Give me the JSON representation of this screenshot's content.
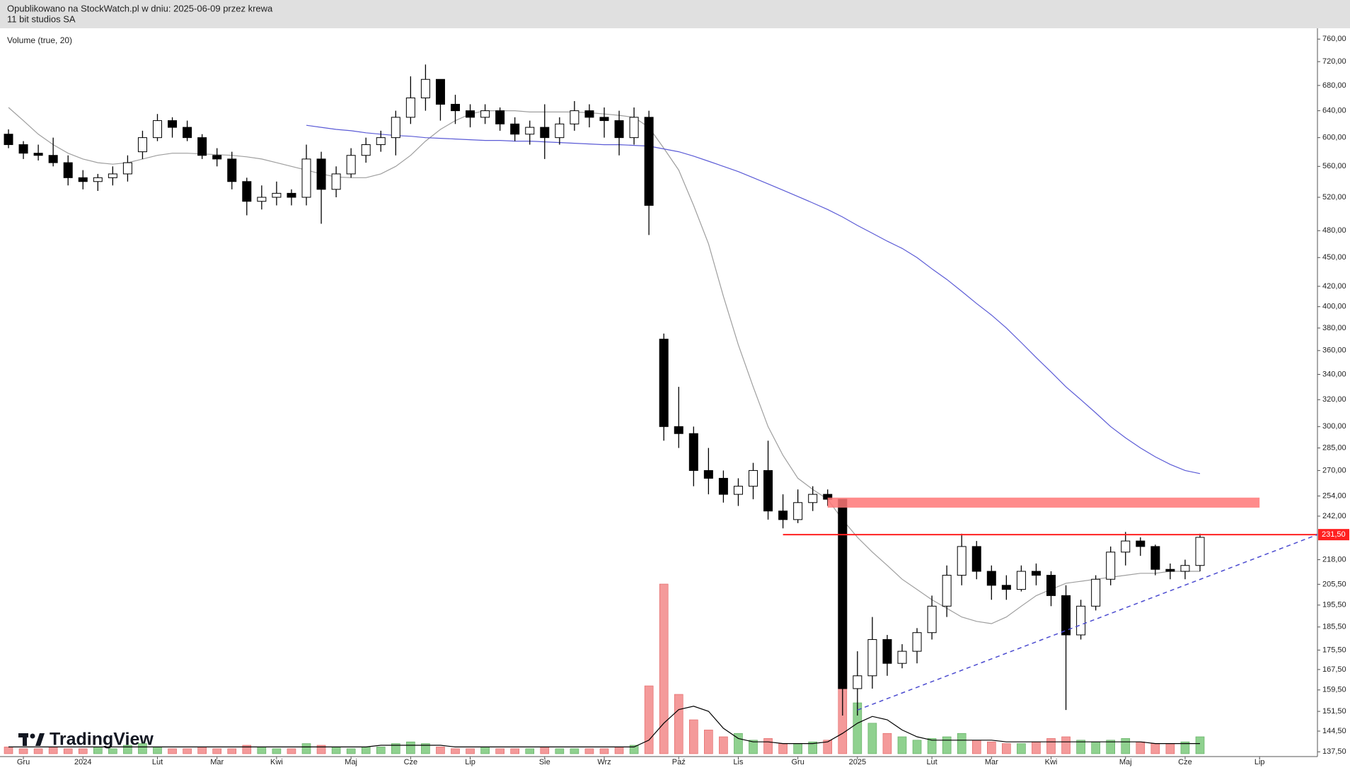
{
  "header": {
    "published": "Opublikowano na StockWatch.pl w dniu: 2025-06-09 przez krewa",
    "symbol": "11 bit studios SA"
  },
  "chart_data": {
    "type": "candlestick",
    "indicator_label": "Volume (true, 20)",
    "brand": "TradingView",
    "log_scale": true,
    "up_color": "#ffffff",
    "down_color": "#000000",
    "volume_up_color": "#8fd18f",
    "volume_down_color": "#f49a9a",
    "categories": [
      null,
      "Gru",
      null,
      null,
      null,
      "2024",
      null,
      null,
      null,
      null,
      "Lut",
      null,
      null,
      null,
      "Mar",
      null,
      null,
      null,
      "Kwi",
      null,
      null,
      null,
      null,
      "Maj",
      null,
      null,
      null,
      "Cze",
      null,
      null,
      null,
      "Lip",
      null,
      null,
      null,
      null,
      "Sie",
      null,
      null,
      null,
      "Wrz",
      null,
      null,
      null,
      null,
      "Paź",
      null,
      null,
      null,
      "Lis",
      null,
      null,
      null,
      "Gru",
      null,
      null,
      null,
      "2025",
      null,
      null,
      null,
      null,
      "Lut",
      null,
      null,
      null,
      "Mar",
      null,
      null,
      null,
      "Kwi",
      null,
      null,
      null,
      null,
      "Maj",
      null,
      null,
      null,
      "Cze",
      null,
      null,
      null,
      null,
      "Lip",
      null,
      null,
      null
    ],
    "open": [
      605,
      590,
      578,
      575,
      565,
      545,
      540,
      545,
      550,
      580,
      600,
      625,
      615,
      600,
      575,
      570,
      540,
      515,
      520,
      525,
      520,
      570,
      530,
      550,
      575,
      590,
      600,
      630,
      660,
      690,
      650,
      640,
      630,
      640,
      620,
      605,
      615,
      600,
      620,
      640,
      630,
      625,
      600,
      630,
      370,
      300,
      295,
      270,
      265,
      255,
      260,
      270,
      245,
      240,
      250,
      255,
      252,
      160,
      165,
      180,
      170,
      175,
      183,
      195,
      210,
      225,
      212,
      205,
      203,
      212,
      210,
      200,
      182,
      195,
      208,
      222,
      228,
      225,
      213,
      212,
      215,
      null,
      null,
      null,
      null,
      null,
      null,
      null
    ],
    "high": [
      612,
      595,
      590,
      600,
      575,
      555,
      550,
      560,
      575,
      610,
      635,
      630,
      625,
      605,
      585,
      580,
      545,
      535,
      540,
      530,
      590,
      580,
      560,
      585,
      600,
      610,
      640,
      695,
      715,
      690,
      665,
      650,
      650,
      645,
      630,
      625,
      650,
      630,
      655,
      650,
      645,
      640,
      645,
      640,
      375,
      330,
      300,
      285,
      270,
      265,
      275,
      290,
      255,
      258,
      260,
      258,
      252,
      175,
      190,
      182,
      178,
      185,
      200,
      215,
      232,
      228,
      215,
      210,
      215,
      216,
      212,
      205,
      198,
      210,
      225,
      233,
      230,
      226,
      216,
      218,
      232,
      null,
      null,
      null,
      null,
      null,
      null,
      null
    ],
    "low": [
      585,
      570,
      568,
      560,
      535,
      530,
      528,
      535,
      540,
      570,
      595,
      600,
      595,
      570,
      560,
      530,
      498,
      505,
      510,
      510,
      510,
      488,
      520,
      545,
      565,
      580,
      575,
      620,
      640,
      625,
      620,
      615,
      620,
      610,
      595,
      590,
      570,
      590,
      610,
      615,
      600,
      575,
      590,
      475,
      290,
      285,
      260,
      255,
      250,
      248,
      252,
      240,
      235,
      238,
      245,
      248,
      150,
      150,
      160,
      165,
      168,
      170,
      180,
      190,
      205,
      208,
      198,
      198,
      202,
      205,
      195,
      152,
      180,
      193,
      205,
      215,
      220,
      210,
      208,
      208,
      212,
      null,
      null,
      null,
      null,
      null,
      null,
      null
    ],
    "close": [
      590,
      578,
      575,
      565,
      545,
      540,
      545,
      550,
      565,
      600,
      625,
      615,
      600,
      575,
      570,
      540,
      515,
      520,
      525,
      520,
      570,
      530,
      550,
      575,
      590,
      600,
      630,
      660,
      690,
      650,
      640,
      630,
      640,
      620,
      605,
      615,
      600,
      620,
      640,
      630,
      625,
      600,
      630,
      510,
      300,
      295,
      270,
      265,
      255,
      260,
      270,
      245,
      240,
      250,
      255,
      252,
      160,
      165,
      180,
      170,
      175,
      183,
      195,
      210,
      225,
      212,
      205,
      203,
      212,
      210,
      200,
      182,
      195,
      208,
      222,
      228,
      225,
      213,
      212,
      215,
      230,
      null,
      null,
      null,
      null,
      null,
      null,
      null
    ],
    "volume": [
      4,
      3,
      3,
      4,
      3,
      3,
      4,
      3,
      5,
      6,
      4,
      3,
      3,
      4,
      3,
      3,
      5,
      4,
      3,
      3,
      6,
      5,
      4,
      3,
      4,
      4,
      6,
      7,
      6,
      4,
      3,
      3,
      4,
      3,
      3,
      3,
      4,
      3,
      3,
      3,
      3,
      4,
      5,
      40,
      100,
      35,
      20,
      14,
      10,
      12,
      8,
      9,
      6,
      6,
      7,
      8,
      55,
      30,
      18,
      12,
      10,
      8,
      9,
      10,
      12,
      8,
      7,
      6,
      6,
      7,
      9,
      10,
      8,
      7,
      8,
      9,
      7,
      6,
      6,
      7,
      10,
      null,
      null,
      null,
      null,
      null,
      null,
      null
    ],
    "lines": [
      {
        "color": "#000000",
        "pane": "volume",
        "values": [
          4,
          4,
          4,
          4,
          4,
          4,
          4,
          4,
          4,
          4,
          4,
          4,
          4,
          4,
          4,
          4,
          4,
          4,
          4,
          4,
          4,
          4,
          4,
          4,
          4,
          5,
          5,
          5,
          5,
          5,
          4,
          4,
          4,
          4,
          4,
          4,
          4,
          4,
          4,
          4,
          4,
          4,
          4,
          8,
          18,
          26,
          28,
          25,
          15,
          9,
          7,
          7,
          6,
          6,
          6,
          7,
          12,
          18,
          22,
          20,
          14,
          10,
          8,
          8,
          8,
          8,
          8,
          7,
          7,
          7,
          7,
          7,
          7,
          7,
          7,
          7,
          7,
          6,
          6,
          6,
          6,
          null,
          null,
          null,
          null,
          null,
          null,
          null
        ]
      },
      {
        "color": "#9e9e9e",
        "pane": "price",
        "values": [
          645,
          625,
          605,
          590,
          578,
          570,
          565,
          563,
          565,
          570,
          575,
          578,
          578,
          577,
          576,
          575,
          573,
          570,
          565,
          560,
          555,
          550,
          546,
          545,
          545,
          550,
          560,
          575,
          595,
          612,
          625,
          635,
          640,
          640,
          640,
          638,
          638,
          638,
          638,
          637,
          635,
          633,
          630,
          615,
          585,
          555,
          510,
          465,
          410,
          365,
          330,
          300,
          280,
          265,
          258,
          252,
          240,
          230,
          222,
          215,
          208,
          203,
          198,
          194,
          190,
          188,
          187,
          190,
          195,
          200,
          203,
          206,
          207,
          208,
          209,
          210,
          211,
          211,
          212,
          212,
          212,
          null,
          null,
          null,
          null,
          null,
          null,
          null
        ]
      },
      {
        "color": "#5b5bd6",
        "pane": "price",
        "values": [
          null,
          null,
          null,
          null,
          null,
          null,
          null,
          null,
          null,
          null,
          null,
          null,
          null,
          null,
          null,
          null,
          null,
          null,
          null,
          null,
          618,
          615,
          612,
          610,
          607,
          605,
          603,
          602,
          600,
          599,
          598,
          597,
          596,
          596,
          595,
          595,
          594,
          593,
          592,
          591,
          590,
          590,
          589,
          588,
          584,
          580,
          574,
          567,
          560,
          553,
          545,
          537,
          529,
          521,
          513,
          505,
          496,
          486,
          477,
          468,
          460,
          450,
          438,
          427,
          415,
          403,
          392,
          380,
          367,
          354,
          342,
          330,
          320,
          310,
          300,
          292,
          285,
          279,
          274,
          270,
          268,
          null,
          null,
          null,
          null,
          null,
          null,
          null
        ]
      }
    ],
    "ylim": [
      136.4,
      776
    ],
    "yticks": [
      {
        "value": 760,
        "label": "760,00"
      },
      {
        "value": 720,
        "label": "720,00"
      },
      {
        "value": 680,
        "label": "680,00"
      },
      {
        "value": 640,
        "label": "640,00"
      },
      {
        "value": 600,
        "label": "600,00"
      },
      {
        "value": 560,
        "label": "560,00"
      },
      {
        "value": 520,
        "label": "520,00"
      },
      {
        "value": 480,
        "label": "480,00"
      },
      {
        "value": 450,
        "label": "450,00"
      },
      {
        "value": 420,
        "label": "420,00"
      },
      {
        "value": 400,
        "label": "400,00"
      },
      {
        "value": 380,
        "label": "380,00"
      },
      {
        "value": 360,
        "label": "360,00"
      },
      {
        "value": 340,
        "label": "340,00"
      },
      {
        "value": 320,
        "label": "320,00"
      },
      {
        "value": 300,
        "label": "300,00"
      },
      {
        "value": 285,
        "label": "285,00"
      },
      {
        "value": 270,
        "label": "270,00"
      },
      {
        "value": 254,
        "label": "254,00"
      },
      {
        "value": 242,
        "label": "242,00"
      },
      {
        "value": 218,
        "label": "218,00"
      },
      {
        "value": 205.5,
        "label": "205,50"
      },
      {
        "value": 195.5,
        "label": "195,50"
      },
      {
        "value": 185.5,
        "label": "185,50"
      },
      {
        "value": 175.5,
        "label": "175,50"
      },
      {
        "value": 167.5,
        "label": "167,50"
      },
      {
        "value": 159.5,
        "label": "159,50"
      },
      {
        "value": 151.5,
        "label": "151,50"
      },
      {
        "value": 144.5,
        "label": "144,50"
      },
      {
        "value": 137.5,
        "label": "137,50"
      }
    ],
    "price_label": {
      "value": 231.5,
      "label": "231,50",
      "color": "#ff2020"
    },
    "zone": {
      "values": [
        247,
        253
      ],
      "color": "#f77"
    },
    "trendline": {
      "values": [
        152,
        231.5
      ],
      "color": "#4a4ad0"
    }
  }
}
